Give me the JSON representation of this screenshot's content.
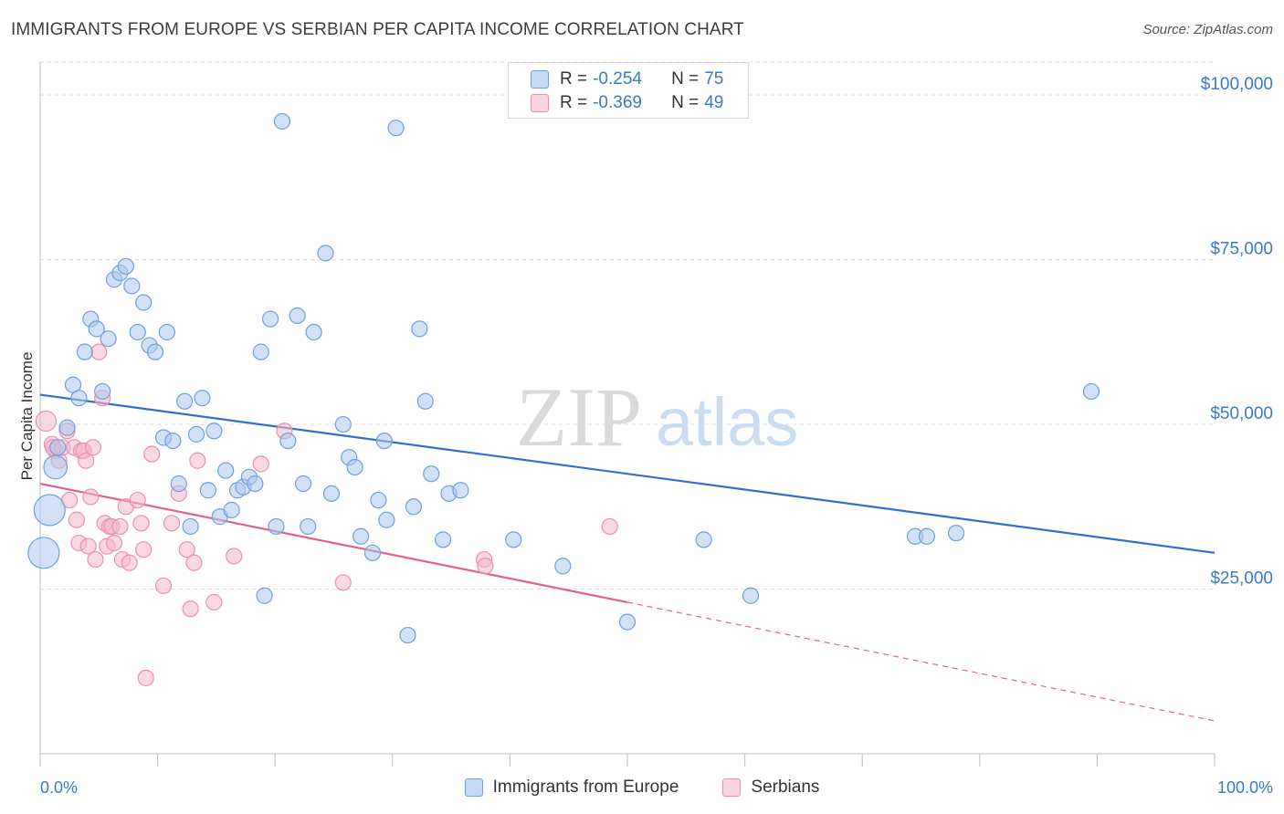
{
  "title": "IMMIGRANTS FROM EUROPE VS SERBIAN PER CAPITA INCOME CORRELATION CHART",
  "source": "Source: ZipAtlas.com",
  "watermark": {
    "zip": "ZIP",
    "atlas": "atlas"
  },
  "colors": {
    "blue_fill": "#adc9ef",
    "blue_stroke": "#6fa0dc",
    "blue_line": "#2f6fcf",
    "pink_fill": "#f6b8cc",
    "pink_stroke": "#ec8fae",
    "pink_line": "#e0608e",
    "accent_text": "#3a78c9",
    "grid": "#dddddd"
  },
  "legend": {
    "rows": [
      {
        "r_label": "R =",
        "r_value": "-0.254",
        "n_label": "N =",
        "n_value": "75"
      },
      {
        "r_label": "R =",
        "r_value": "-0.369",
        "n_label": "N =",
        "n_value": "49"
      }
    ]
  },
  "bottom_legend": {
    "items": [
      "Immigrants from Europe",
      "Serbians"
    ]
  },
  "chart_data": {
    "type": "scatter",
    "title": "IMMIGRANTS FROM EUROPE VS SERBIAN PER CAPITA INCOME CORRELATION CHART",
    "xlabel": "",
    "ylabel": "Per Capita Income",
    "xlim": [
      0,
      100
    ],
    "ylim": [
      0,
      105000
    ],
    "x_tick_labels": {
      "left": "0.0%",
      "right": "100.0%"
    },
    "y_ticks": [
      {
        "value": 25000,
        "label": "$25,000"
      },
      {
        "value": 50000,
        "label": "$50,000"
      },
      {
        "value": 75000,
        "label": "$75,000"
      },
      {
        "value": 100000,
        "label": "$100,000"
      }
    ],
    "grid": true,
    "legend_position": "top-center",
    "series": [
      {
        "name": "Immigrants from Europe",
        "color": "#adc9ef",
        "R": -0.254,
        "N": 75,
        "trend": {
          "x": [
            0,
            100
          ],
          "y": [
            54500,
            30500
          ],
          "dashed_from": null
        },
        "points": [
          {
            "x": 0.3,
            "y": 30500,
            "s": 2
          },
          {
            "x": 0.8,
            "y": 37000,
            "s": 2
          },
          {
            "x": 1.3,
            "y": 43500,
            "s": 1.5
          },
          {
            "x": 1.5,
            "y": 46500,
            "s": 1
          },
          {
            "x": 2.3,
            "y": 49500,
            "s": 1
          },
          {
            "x": 2.8,
            "y": 56000,
            "s": 1
          },
          {
            "x": 3.3,
            "y": 54000,
            "s": 1
          },
          {
            "x": 3.8,
            "y": 61000,
            "s": 1
          },
          {
            "x": 4.3,
            "y": 66000,
            "s": 1
          },
          {
            "x": 4.8,
            "y": 64500,
            "s": 1
          },
          {
            "x": 5.3,
            "y": 55000,
            "s": 1
          },
          {
            "x": 5.8,
            "y": 63000,
            "s": 1
          },
          {
            "x": 6.3,
            "y": 72000,
            "s": 1
          },
          {
            "x": 6.8,
            "y": 73000,
            "s": 1
          },
          {
            "x": 7.3,
            "y": 74000,
            "s": 1
          },
          {
            "x": 7.8,
            "y": 71000,
            "s": 1
          },
          {
            "x": 8.3,
            "y": 64000,
            "s": 1
          },
          {
            "x": 8.8,
            "y": 68500,
            "s": 1
          },
          {
            "x": 9.3,
            "y": 62000,
            "s": 1
          },
          {
            "x": 9.8,
            "y": 61000,
            "s": 1
          },
          {
            "x": 10.5,
            "y": 48000,
            "s": 1
          },
          {
            "x": 10.8,
            "y": 64000,
            "s": 1
          },
          {
            "x": 11.3,
            "y": 47500,
            "s": 1
          },
          {
            "x": 11.8,
            "y": 41000,
            "s": 1
          },
          {
            "x": 12.3,
            "y": 53500,
            "s": 1
          },
          {
            "x": 12.8,
            "y": 34500,
            "s": 1
          },
          {
            "x": 13.3,
            "y": 48500,
            "s": 1
          },
          {
            "x": 13.8,
            "y": 54000,
            "s": 1
          },
          {
            "x": 14.3,
            "y": 40000,
            "s": 1
          },
          {
            "x": 14.8,
            "y": 49000,
            "s": 1
          },
          {
            "x": 15.3,
            "y": 36000,
            "s": 1
          },
          {
            "x": 15.8,
            "y": 43000,
            "s": 1
          },
          {
            "x": 16.3,
            "y": 37000,
            "s": 1
          },
          {
            "x": 16.8,
            "y": 40000,
            "s": 1
          },
          {
            "x": 17.3,
            "y": 40500,
            "s": 1
          },
          {
            "x": 17.8,
            "y": 42000,
            "s": 1
          },
          {
            "x": 18.3,
            "y": 41000,
            "s": 1
          },
          {
            "x": 18.8,
            "y": 61000,
            "s": 1
          },
          {
            "x": 19.1,
            "y": 24000,
            "s": 1
          },
          {
            "x": 19.6,
            "y": 66000,
            "s": 1
          },
          {
            "x": 20.1,
            "y": 34500,
            "s": 1
          },
          {
            "x": 20.6,
            "y": 96000,
            "s": 1
          },
          {
            "x": 21.1,
            "y": 47500,
            "s": 1
          },
          {
            "x": 21.9,
            "y": 66500,
            "s": 1
          },
          {
            "x": 22.4,
            "y": 41000,
            "s": 1
          },
          {
            "x": 22.8,
            "y": 34500,
            "s": 1
          },
          {
            "x": 23.3,
            "y": 64000,
            "s": 1
          },
          {
            "x": 24.3,
            "y": 76000,
            "s": 1
          },
          {
            "x": 24.8,
            "y": 39500,
            "s": 1
          },
          {
            "x": 25.8,
            "y": 50000,
            "s": 1
          },
          {
            "x": 26.3,
            "y": 45000,
            "s": 1
          },
          {
            "x": 26.8,
            "y": 43500,
            "s": 1
          },
          {
            "x": 27.3,
            "y": 33000,
            "s": 1
          },
          {
            "x": 28.3,
            "y": 30500,
            "s": 1
          },
          {
            "x": 28.8,
            "y": 38500,
            "s": 1
          },
          {
            "x": 29.3,
            "y": 47500,
            "s": 1
          },
          {
            "x": 29.5,
            "y": 35500,
            "s": 1
          },
          {
            "x": 30.3,
            "y": 95000,
            "s": 1
          },
          {
            "x": 31.3,
            "y": 18000,
            "s": 1
          },
          {
            "x": 31.8,
            "y": 37500,
            "s": 1
          },
          {
            "x": 32.3,
            "y": 64500,
            "s": 1
          },
          {
            "x": 32.8,
            "y": 53500,
            "s": 1
          },
          {
            "x": 33.3,
            "y": 42500,
            "s": 1
          },
          {
            "x": 34.3,
            "y": 32500,
            "s": 1
          },
          {
            "x": 34.8,
            "y": 39500,
            "s": 1
          },
          {
            "x": 35.8,
            "y": 40000,
            "s": 1
          },
          {
            "x": 40.3,
            "y": 32500,
            "s": 1
          },
          {
            "x": 44.5,
            "y": 28500,
            "s": 1
          },
          {
            "x": 50.0,
            "y": 20000,
            "s": 1
          },
          {
            "x": 56.5,
            "y": 32500,
            "s": 1
          },
          {
            "x": 60.5,
            "y": 24000,
            "s": 1
          },
          {
            "x": 74.5,
            "y": 33000,
            "s": 1
          },
          {
            "x": 75.5,
            "y": 33000,
            "s": 1
          },
          {
            "x": 78.0,
            "y": 33500,
            "s": 1
          },
          {
            "x": 89.5,
            "y": 55000,
            "s": 1
          }
        ]
      },
      {
        "name": "Serbians",
        "color": "#f6b8cc",
        "R": -0.369,
        "N": 49,
        "trend": {
          "x": [
            0,
            50,
            100
          ],
          "y": [
            41000,
            23000,
            5000
          ],
          "dashed_from": 50
        },
        "points": [
          {
            "x": 0.5,
            "y": 50500,
            "s": 1.3
          },
          {
            "x": 1.0,
            "y": 47000,
            "s": 1
          },
          {
            "x": 1.3,
            "y": 46000,
            "s": 1
          },
          {
            "x": 1.6,
            "y": 44500,
            "s": 1
          },
          {
            "x": 1.9,
            "y": 46500,
            "s": 1
          },
          {
            "x": 2.3,
            "y": 49000,
            "s": 1
          },
          {
            "x": 2.5,
            "y": 38500,
            "s": 1
          },
          {
            "x": 2.9,
            "y": 46500,
            "s": 1
          },
          {
            "x": 3.1,
            "y": 35500,
            "s": 1
          },
          {
            "x": 3.3,
            "y": 32000,
            "s": 1
          },
          {
            "x": 3.5,
            "y": 46000,
            "s": 1
          },
          {
            "x": 3.7,
            "y": 46000,
            "s": 1
          },
          {
            "x": 3.9,
            "y": 44500,
            "s": 1
          },
          {
            "x": 4.1,
            "y": 31500,
            "s": 1
          },
          {
            "x": 4.3,
            "y": 39000,
            "s": 1
          },
          {
            "x": 4.5,
            "y": 46500,
            "s": 1
          },
          {
            "x": 4.7,
            "y": 29500,
            "s": 1
          },
          {
            "x": 5.0,
            "y": 61000,
            "s": 1
          },
          {
            "x": 5.3,
            "y": 54000,
            "s": 1
          },
          {
            "x": 5.5,
            "y": 35000,
            "s": 1
          },
          {
            "x": 5.7,
            "y": 31500,
            "s": 1
          },
          {
            "x": 5.9,
            "y": 34500,
            "s": 1
          },
          {
            "x": 6.1,
            "y": 34500,
            "s": 1
          },
          {
            "x": 6.3,
            "y": 32000,
            "s": 1
          },
          {
            "x": 6.8,
            "y": 34500,
            "s": 1
          },
          {
            "x": 7.0,
            "y": 29500,
            "s": 1
          },
          {
            "x": 7.3,
            "y": 37500,
            "s": 1
          },
          {
            "x": 7.6,
            "y": 29000,
            "s": 1
          },
          {
            "x": 8.3,
            "y": 38500,
            "s": 1
          },
          {
            "x": 8.6,
            "y": 35000,
            "s": 1
          },
          {
            "x": 8.8,
            "y": 31000,
            "s": 1
          },
          {
            "x": 9.0,
            "y": 11500,
            "s": 1
          },
          {
            "x": 9.5,
            "y": 45500,
            "s": 1
          },
          {
            "x": 10.5,
            "y": 25500,
            "s": 1
          },
          {
            "x": 11.2,
            "y": 35000,
            "s": 1
          },
          {
            "x": 11.8,
            "y": 39500,
            "s": 1
          },
          {
            "x": 12.5,
            "y": 31000,
            "s": 1
          },
          {
            "x": 12.8,
            "y": 22000,
            "s": 1
          },
          {
            "x": 13.1,
            "y": 29000,
            "s": 1
          },
          {
            "x": 13.4,
            "y": 44500,
            "s": 1
          },
          {
            "x": 14.8,
            "y": 23000,
            "s": 1
          },
          {
            "x": 16.5,
            "y": 30000,
            "s": 1
          },
          {
            "x": 18.8,
            "y": 44000,
            "s": 1
          },
          {
            "x": 20.8,
            "y": 49000,
            "s": 1
          },
          {
            "x": 25.8,
            "y": 26000,
            "s": 1
          },
          {
            "x": 37.8,
            "y": 29500,
            "s": 1
          },
          {
            "x": 37.9,
            "y": 28500,
            "s": 1
          },
          {
            "x": 48.5,
            "y": 34500,
            "s": 1
          },
          {
            "x": 1.1,
            "y": 46500,
            "s": 1
          }
        ]
      }
    ]
  }
}
